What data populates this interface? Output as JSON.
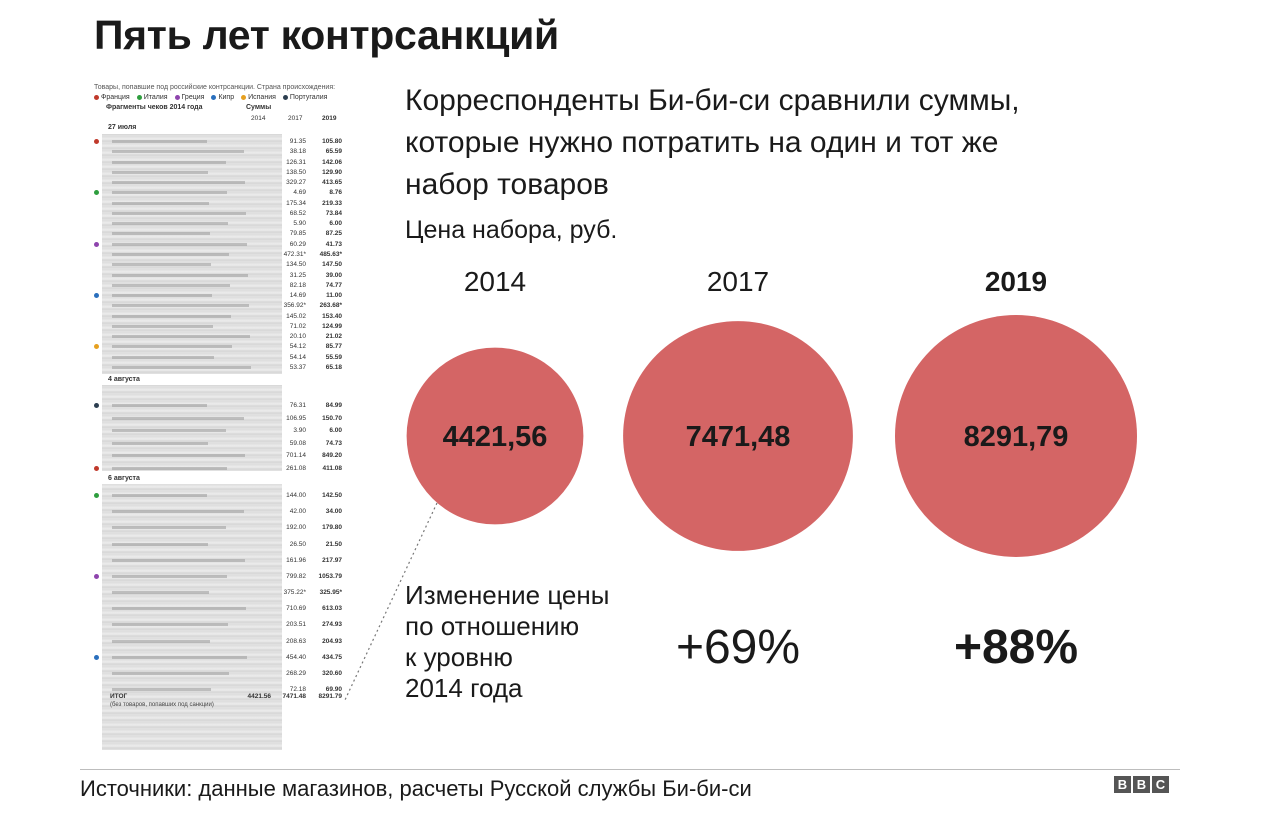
{
  "title": "Пять лет контрсанкций",
  "intro": [
    "Корреспонденты Би-би-си сравнили суммы,",
    "которые нужно потратить на один и тот же",
    "набор товаров"
  ],
  "price_label": "Цена набора, руб.",
  "change_label": [
    "Изменение цены",
    "по отношению",
    "к уровню",
    "2014 года"
  ],
  "source": "Источники: данные магазинов, расчеты Русской службы Би-би-си",
  "logo_letters": [
    "B",
    "B",
    "C"
  ],
  "colors": {
    "bubble": "#d46565",
    "text": "#1a1a1a"
  },
  "receipt": {
    "legend_title": "Товары, попавшие под российские контрсанкции. Страна происхождения:",
    "legend": [
      {
        "label": "Франция",
        "color": "#c0392b"
      },
      {
        "label": "Италия",
        "color": "#2e9e3e"
      },
      {
        "label": "Греция",
        "color": "#8e44ad"
      },
      {
        "label": "Кипр",
        "color": "#2a6fbd"
      },
      {
        "label": "Испания",
        "color": "#e6a020"
      },
      {
        "label": "Португалия",
        "color": "#2c3e50"
      }
    ],
    "header_fragments": "Фрагменты чеков 2014 года",
    "header_sums": "Суммы",
    "col_years": [
      "2014",
      "2017",
      "2019"
    ],
    "dates": [
      "27 июля",
      "4 августа",
      "6 августа"
    ],
    "rows": [
      {
        "y17": "91.35",
        "y19": "105.80"
      },
      {
        "y17": "38.18",
        "y19": "65.59"
      },
      {
        "y17": "126.31",
        "y19": "142.06"
      },
      {
        "y17": "138.50",
        "y19": "129.90"
      },
      {
        "y17": "329.27",
        "y19": "413.65"
      },
      {
        "y17": "4.69",
        "y19": "8.76"
      },
      {
        "y17": "175.34",
        "y19": "219.33"
      },
      {
        "y17": "68.52",
        "y19": "73.84"
      },
      {
        "y17": "5.90",
        "y19": "6.00"
      },
      {
        "y17": "79.85",
        "y19": "87.25"
      },
      {
        "y17": "60.29",
        "y19": "41.73"
      },
      {
        "y17": "472.31*",
        "y19": "485.63*"
      },
      {
        "y17": "134.50",
        "y19": "147.50"
      },
      {
        "y17": "31.25",
        "y19": "39.00"
      },
      {
        "y17": "82.18",
        "y19": "74.77"
      },
      {
        "y17": "14.69",
        "y19": "11.00"
      },
      {
        "y17": "356.92*",
        "y19": "263.68*"
      },
      {
        "y17": "145.02",
        "y19": "153.40"
      },
      {
        "y17": "71.02",
        "y19": "124.99"
      },
      {
        "y17": "20.10",
        "y19": "21.02"
      },
      {
        "y17": "54.12",
        "y19": "85.77"
      },
      {
        "y17": "54.14",
        "y19": "55.59"
      },
      {
        "y17": "53.37",
        "y19": "65.18"
      },
      {
        "y17": "76.31",
        "y19": "84.99"
      },
      {
        "y17": "106.95",
        "y19": "150.70"
      },
      {
        "y17": "3.90",
        "y19": "6.00"
      },
      {
        "y17": "59.08",
        "y19": "74.73"
      },
      {
        "y17": "701.14",
        "y19": "849.20"
      },
      {
        "y17": "261.08",
        "y19": "411.08"
      },
      {
        "y17": "144.00",
        "y19": "142.50"
      },
      {
        "y17": "42.00",
        "y19": "34.00"
      },
      {
        "y17": "192.00",
        "y19": "179.80"
      },
      {
        "y17": "26.50",
        "y19": "21.50"
      },
      {
        "y17": "161.96",
        "y19": "217.97"
      },
      {
        "y17": "799.82",
        "y19": "1053.79"
      },
      {
        "y17": "375.22*",
        "y19": "325.95*"
      },
      {
        "y17": "710.69",
        "y19": "613.03"
      },
      {
        "y17": "203.51",
        "y19": "274.93"
      },
      {
        "y17": "208.63",
        "y19": "204.93"
      },
      {
        "y17": "454.40",
        "y19": "434.75"
      },
      {
        "y17": "268.29",
        "y19": "320.60"
      },
      {
        "y17": "72.18",
        "y19": "69.90"
      }
    ],
    "total_label": "ИТОГ",
    "total_note": "(без товаров, попавших под санкции)",
    "totals": [
      "4421.56",
      "7471.48",
      "8291.79"
    ]
  },
  "chart_data": {
    "type": "bubble",
    "title": "Цена набора, руб.",
    "categories": [
      "2014",
      "2017",
      "2019"
    ],
    "values": [
      4421.56,
      7471.48,
      8291.79
    ],
    "value_labels": [
      "4421,56",
      "7471,48",
      "8291,79"
    ],
    "highlight_category": "2019",
    "change": {
      "label": "Изменение цены по отношению к уровню 2014 года",
      "categories": [
        "2017",
        "2019"
      ],
      "values_pct": [
        69,
        88
      ],
      "value_labels": [
        "+69%",
        "+88%"
      ]
    },
    "grid": false,
    "legend": "none"
  }
}
